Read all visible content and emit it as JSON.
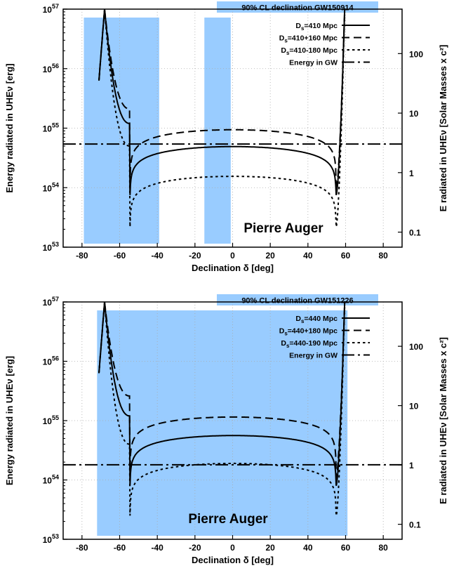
{
  "chart_data": [
    {
      "type": "line",
      "title": "90% CL declination GW150914",
      "xlabel": "Declination δ [deg]",
      "ylabel": "Energy radiated in UHEν [erg]",
      "y2label": "E radiated in UHEν [Solar Masses x c²]",
      "xlim": [
        -90,
        90
      ],
      "ylim": [
        1e+53,
        1e+57
      ],
      "y_scale": "log",
      "x_ticks": [
        "-80",
        "-60",
        "-40",
        "-20",
        "0",
        "20",
        "40",
        "60",
        "80"
      ],
      "y_ticks": [
        {
          "base": "10",
          "exp": "53"
        },
        {
          "base": "10",
          "exp": "54"
        },
        {
          "base": "10",
          "exp": "55"
        },
        {
          "base": "10",
          "exp": "56"
        },
        {
          "base": "10",
          "exp": "57"
        }
      ],
      "y2_ticks": [
        {
          "label": "0.1",
          "value": 0.1
        },
        {
          "label": "1",
          "value": 1
        },
        {
          "label": "10",
          "value": 10
        },
        {
          "label": "100",
          "value": 100
        }
      ],
      "solar_mass_erg": 1.79e+54,
      "grid": true,
      "legend_position": "top-right",
      "annotation": "Pierre Auger",
      "bands": [
        {
          "from": -79,
          "to": -39
        },
        {
          "from": -15,
          "to": -1
        }
      ],
      "energy_gw": 5.4e+54,
      "series": [
        {
          "name_main": "D",
          "name_sub": "s",
          "name_rest": "=410 Mpc",
          "style": "solid",
          "baseline": 4.9e+54,
          "shape_left": 1.2e+55,
          "notch": 7.5e+53
        },
        {
          "name_main": "D",
          "name_sub": "s",
          "name_rest": "=410+160 Mpc",
          "style": "dashed",
          "baseline": 9.4e+54,
          "shape_left": 2.1e+55,
          "notch": 9e+53
        },
        {
          "name_main": "D",
          "name_sub": "s",
          "name_rest": "=410-180 Mpc",
          "style": "dotted",
          "baseline": 1.55e+54,
          "shape_left": 5e+54,
          "notch": 2.2e+53
        },
        {
          "name_main": "Energy in GW",
          "name_sub": "",
          "name_rest": "",
          "style": "dashdot"
        }
      ]
    },
    {
      "type": "line",
      "title": "90% CL declination GW151226",
      "xlabel": "Declination δ [deg]",
      "ylabel": "Energy radiated in UHEν [erg]",
      "y2label": "E radiated in UHEν [Solar Masses x c²]",
      "xlim": [
        -90,
        90
      ],
      "ylim": [
        1e+53,
        1e+57
      ],
      "y_scale": "log",
      "x_ticks": [
        "-80",
        "-60",
        "-40",
        "-20",
        "0",
        "20",
        "40",
        "60",
        "80"
      ],
      "y_ticks": [
        {
          "base": "10",
          "exp": "53"
        },
        {
          "base": "10",
          "exp": "54"
        },
        {
          "base": "10",
          "exp": "55"
        },
        {
          "base": "10",
          "exp": "56"
        },
        {
          "base": "10",
          "exp": "57"
        }
      ],
      "y2_ticks": [
        {
          "label": "0.1",
          "value": 0.1
        },
        {
          "label": "1",
          "value": 1
        },
        {
          "label": "10",
          "value": 10
        },
        {
          "label": "100",
          "value": 100
        }
      ],
      "solar_mass_erg": 1.79e+54,
      "grid": true,
      "legend_position": "top-right",
      "annotation": "Pierre Auger",
      "bands": [
        {
          "from": -72,
          "to": 61
        }
      ],
      "energy_gw": 1.8e+54,
      "series": [
        {
          "name_main": "D",
          "name_sub": "s",
          "name_rest": "=440 Mpc",
          "style": "solid",
          "baseline": 5.6e+54,
          "shape_left": 1.2e+55,
          "notch": 8e+53
        },
        {
          "name_main": "D",
          "name_sub": "s",
          "name_rest": "=440+180 Mpc",
          "style": "dashed",
          "baseline": 1.15e+55,
          "shape_left": 2.6e+55,
          "notch": 1.1e+54
        },
        {
          "name_main": "D",
          "name_sub": "s",
          "name_rest": "=440-190 Mpc",
          "style": "dotted",
          "baseline": 1.9e+54,
          "shape_left": 4e+54,
          "notch": 2.5e+53
        },
        {
          "name_main": "Energy in GW",
          "name_sub": "",
          "name_rest": "",
          "style": "dashdot"
        }
      ]
    }
  ]
}
